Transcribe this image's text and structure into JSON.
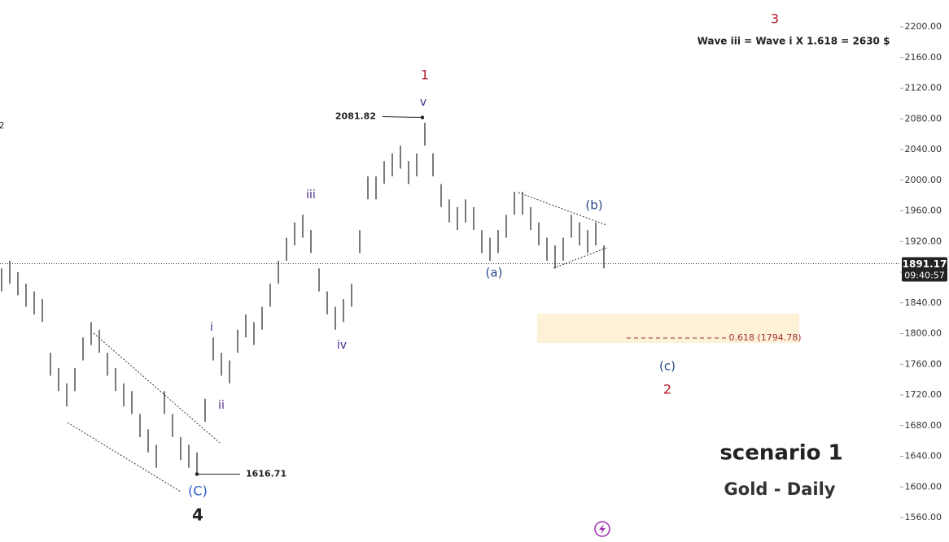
{
  "chart_data": {
    "type": "ohlc",
    "high": [
      1885,
      1895,
      1880,
      1865,
      1855,
      1845,
      1775,
      1755,
      1735,
      1755,
      1795,
      1815,
      1805,
      1775,
      1755,
      1735,
      1725,
      1695,
      1675,
      1655,
      1725,
      1695,
      1665,
      1655,
      1645,
      1715,
      1795,
      1775,
      1765,
      1805,
      1825,
      1815,
      1835,
      1865,
      1895,
      1925,
      1945,
      1955,
      1935,
      1885,
      1855,
      1835,
      1845,
      1865,
      1935,
      2005,
      2005,
      2025,
      2035,
      2045,
      2025,
      2035,
      2075,
      2035,
      1995,
      1975,
      1965,
      1975,
      1965,
      1935,
      1925,
      1935,
      1955,
      1985,
      1985,
      1965,
      1945,
      1925,
      1915,
      1925,
      1955,
      1945,
      1935,
      1945,
      1915
    ],
    "low": [
      1855,
      1865,
      1850,
      1835,
      1825,
      1815,
      1745,
      1725,
      1705,
      1725,
      1765,
      1785,
      1775,
      1745,
      1725,
      1705,
      1695,
      1665,
      1645,
      1625,
      1695,
      1665,
      1635,
      1625,
      1615,
      1685,
      1765,
      1745,
      1735,
      1775,
      1795,
      1785,
      1805,
      1835,
      1865,
      1895,
      1915,
      1925,
      1905,
      1855,
      1825,
      1805,
      1815,
      1835,
      1905,
      1975,
      1975,
      1995,
      2005,
      2015,
      1995,
      2005,
      2045,
      2005,
      1965,
      1945,
      1935,
      1945,
      1935,
      1905,
      1895,
      1905,
      1925,
      1955,
      1955,
      1935,
      1915,
      1895,
      1885,
      1895,
      1925,
      1915,
      1905,
      1915,
      1885
    ],
    "ylim": [
      1560,
      2200
    ],
    "yticks": [
      {
        "value": 2200,
        "label": "2200.00"
      },
      {
        "value": 2160,
        "label": "2160.00"
      },
      {
        "value": 2120,
        "label": "2120.00"
      },
      {
        "value": 2080,
        "label": "2080.00"
      },
      {
        "value": 2040,
        "label": "2040.00"
      },
      {
        "value": 2000,
        "label": "2000.00"
      },
      {
        "value": 1960,
        "label": "1960.00"
      },
      {
        "value": 1920,
        "label": "1920.00"
      },
      {
        "value": 1880,
        "label": "1880.00"
      },
      {
        "value": 1840,
        "label": "1840.00"
      },
      {
        "value": 1800,
        "label": "1800.00"
      },
      {
        "value": 1760,
        "label": "1760.00"
      },
      {
        "value": 1720,
        "label": "1720.00"
      },
      {
        "value": 1680,
        "label": "1680.00"
      },
      {
        "value": 1640,
        "label": "1640.00"
      },
      {
        "value": 1600,
        "label": "1600.00"
      },
      {
        "value": 1560,
        "label": "1560.00"
      }
    ],
    "last_price": 1891.17,
    "last_time": "09:40:57",
    "peak": 2081.82,
    "trough": 1616.71,
    "annotations": {
      "w3": "3",
      "note": "Wave iii = Wave i X 1.618 = 2630 $",
      "w1": "1",
      "v": "v",
      "iii": "iii",
      "b": "(b)",
      "a": "(a)",
      "i": "i",
      "ii": "ii",
      "iv": "iv",
      "C": "(C)",
      "w4": "4",
      "c": "(c)",
      "w2": "2",
      "fib": "0.618 (1794.78)",
      "edge": "2",
      "scenario": "scenario 1",
      "asset": "Gold - Daily"
    },
    "color": "#222222"
  }
}
